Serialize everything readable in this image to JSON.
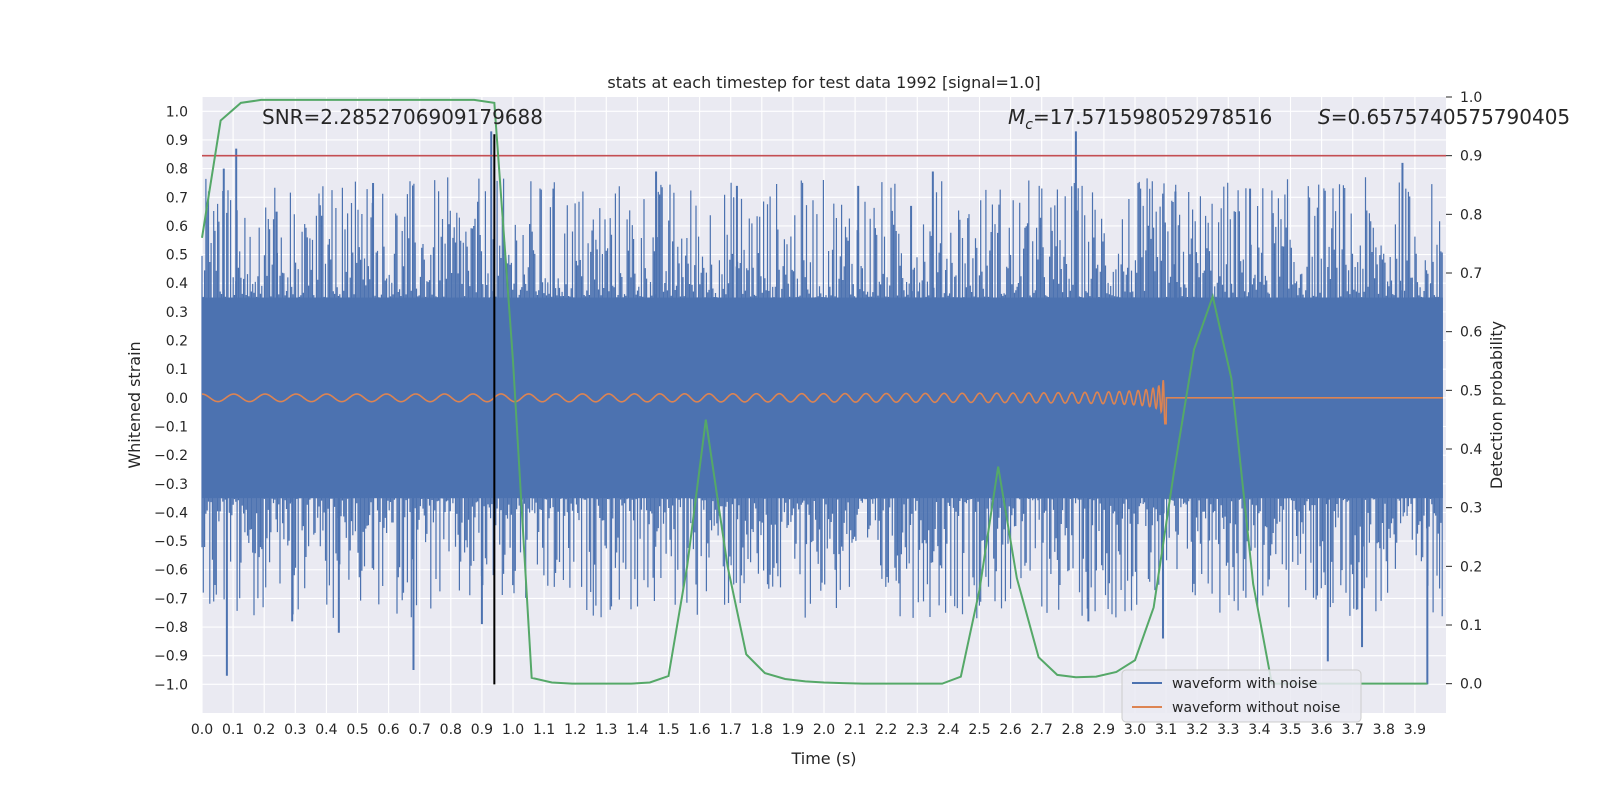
{
  "chart_data": {
    "type": "line",
    "title": "stats at each timestep for test data 1992 [signal=1.0]",
    "xlabel": "Time (s)",
    "ylabel": "Whitened strain",
    "y2label": "Detection probability",
    "xlim": [
      0.0,
      4.0
    ],
    "ylim": [
      -1.1,
      1.05
    ],
    "y2lim": [
      -0.05,
      1.0
    ],
    "xticks": [
      0.0,
      0.1,
      0.2,
      0.3,
      0.4,
      0.5,
      0.6,
      0.7,
      0.8,
      0.9,
      1.0,
      1.1,
      1.2,
      1.3,
      1.4,
      1.5,
      1.6,
      1.7,
      1.8,
      1.9,
      2.0,
      2.1,
      2.2,
      2.3,
      2.4,
      2.5,
      2.6,
      2.7,
      2.8,
      2.9,
      3.0,
      3.1,
      3.2,
      3.3,
      3.4,
      3.5,
      3.6,
      3.7,
      3.8,
      3.9
    ],
    "yticks": [
      1.0,
      0.9,
      0.8,
      0.7,
      0.6,
      0.5,
      0.4,
      0.3,
      0.2,
      0.1,
      0.0,
      -0.1,
      -0.2,
      -0.3,
      -0.4,
      -0.5,
      -0.6,
      -0.7,
      -0.8,
      -0.9,
      -1.0
    ],
    "y2ticks": [
      0.0,
      0.1,
      0.2,
      0.3,
      0.4,
      0.5,
      0.6,
      0.7,
      0.8,
      0.9,
      1.0
    ],
    "annotations": {
      "snr": "SNR=2.2852706909179688",
      "mc_value": "=17.571598052978516",
      "s_value": "=0.6575740575790405"
    },
    "legend": {
      "position": "lower right",
      "entries": [
        "waveform with noise",
        "waveform without noise"
      ]
    },
    "threshold_line": {
      "axis": "right",
      "y": 0.9,
      "color": "#c44e52"
    },
    "vertical_marker": {
      "x": 0.94,
      "color": "#000000"
    },
    "series": [
      {
        "name": "waveform with noise",
        "axis": "left",
        "color": "#4c72b0",
        "typical_amplitude": 0.35,
        "ymin": -0.98,
        "ymax": 0.93
      },
      {
        "name": "waveform without noise",
        "axis": "left",
        "color": "#dd8452",
        "chirp_start": 0.0,
        "chirp_end": 3.1,
        "amplitude_start": 0.01,
        "amplitude_end": 0.1
      },
      {
        "axis": "right",
        "color": "#55a868",
        "x": [
          0.0,
          0.06,
          0.125,
          0.19,
          0.25,
          0.31,
          0.38,
          0.44,
          0.5,
          0.56,
          0.62,
          0.69,
          0.75,
          0.81,
          0.875,
          0.94,
          1.0,
          1.06,
          1.125,
          1.19,
          1.25,
          1.31,
          1.38,
          1.44,
          1.5,
          1.56,
          1.62,
          1.69,
          1.75,
          1.81,
          1.875,
          1.94,
          2.0,
          2.06,
          2.125,
          2.19,
          2.25,
          2.31,
          2.38,
          2.44,
          2.5,
          2.56,
          2.62,
          2.69,
          2.75,
          2.81,
          2.875,
          2.94,
          3.0,
          3.06,
          3.125,
          3.19,
          3.25,
          3.31,
          3.38,
          3.44,
          3.5,
          3.56,
          3.62,
          3.69,
          3.75,
          3.81,
          3.875,
          3.94
        ],
        "y": [
          0.76,
          0.96,
          0.99,
          0.995,
          0.995,
          0.995,
          0.995,
          0.995,
          0.995,
          0.995,
          0.995,
          0.995,
          0.995,
          0.995,
          0.995,
          0.99,
          0.55,
          0.01,
          0.002,
          0.0,
          0.0,
          0.0,
          0.0,
          0.002,
          0.013,
          0.2,
          0.45,
          0.2,
          0.05,
          0.018,
          0.008,
          0.004,
          0.002,
          0.001,
          0.0,
          0.0,
          0.0,
          0.0,
          0.0,
          0.012,
          0.16,
          0.37,
          0.18,
          0.045,
          0.015,
          0.011,
          0.012,
          0.02,
          0.04,
          0.13,
          0.36,
          0.57,
          0.66,
          0.52,
          0.17,
          0.0,
          0.0,
          0.0,
          0.0,
          0.0,
          0.0,
          0.0,
          0.0,
          0.0
        ]
      }
    ],
    "spikes": [
      {
        "x": 0.07,
        "y": 0.8
      },
      {
        "x": 0.08,
        "y": -0.97
      },
      {
        "x": 0.11,
        "y": 0.87
      },
      {
        "x": 0.24,
        "y": 0.65
      },
      {
        "x": 0.29,
        "y": -0.78
      },
      {
        "x": 0.44,
        "y": -0.82
      },
      {
        "x": 0.55,
        "y": 0.75
      },
      {
        "x": 0.68,
        "y": -0.95
      },
      {
        "x": 0.9,
        "y": -0.79
      },
      {
        "x": 0.93,
        "y": 0.93
      },
      {
        "x": 1.13,
        "y": 0.73
      },
      {
        "x": 1.46,
        "y": 0.79
      },
      {
        "x": 1.57,
        "y": -0.12
      },
      {
        "x": 1.72,
        "y": 0.74
      },
      {
        "x": 2.11,
        "y": 0.74
      },
      {
        "x": 2.28,
        "y": 0.67
      },
      {
        "x": 2.35,
        "y": 0.79
      },
      {
        "x": 2.81,
        "y": 0.93
      },
      {
        "x": 2.85,
        "y": -0.78
      },
      {
        "x": 3.09,
        "y": -0.84
      },
      {
        "x": 3.13,
        "y": 0.72
      },
      {
        "x": 3.37,
        "y": 0.73
      },
      {
        "x": 3.62,
        "y": -0.92
      },
      {
        "x": 3.73,
        "y": -0.87
      },
      {
        "x": 3.86,
        "y": 0.82
      },
      {
        "x": 3.94,
        "y": -1.0
      }
    ]
  }
}
